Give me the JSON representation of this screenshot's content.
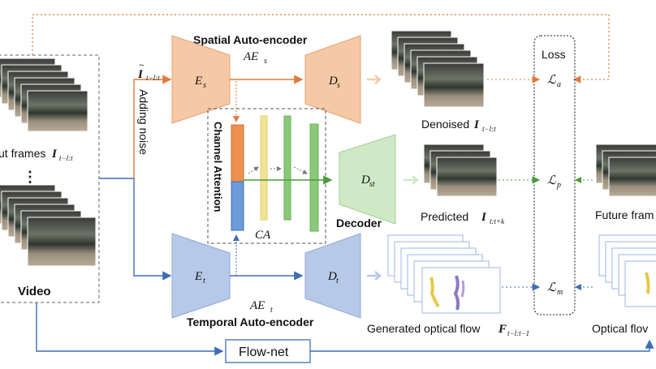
{
  "blocks": {
    "spatial_title": "Spatial Auto-encoder",
    "spatial_var": "AE",
    "spatial_var_sub": "s",
    "es_var": "E",
    "es_sub": "s",
    "ds_var": "D",
    "ds_sub": "s",
    "temporal_title": "Temporal Auto-encoder",
    "temporal_var": "AE",
    "temporal_var_sub": "t",
    "et_var": "E",
    "et_sub": "t",
    "dt_var": "D",
    "dt_sub": "t",
    "decoder_title": "Decoder",
    "dst_var": "D",
    "dst_sub": "st",
    "channel_attention": "Channel Attention",
    "ca_label": "CA",
    "adding_noise": "Adding noise",
    "noisy_input_var": "I",
    "noisy_input_sub": "t−l:t",
    "flownet": "Flow-net",
    "loss_title": "Loss",
    "loss_a_sub": "a",
    "loss_p_sub": "p",
    "loss_m_sub": "m",
    "loss_var": "ℒ"
  },
  "labels": {
    "input_frames_prefix": "ut frames",
    "input_frames_var": "I",
    "input_frames_sub": "t−l:t",
    "video": "Video",
    "denoised_prefix": "Denoised",
    "denoised_var": "I",
    "denoised_sub": "t−l:t",
    "predicted_prefix": "Predicted",
    "predicted_var": "I",
    "predicted_sub": "t:t+k",
    "future_frames": "Future fram",
    "generated_flow_prefix": "Generated optical flow",
    "generated_flow_var": "F",
    "generated_flow_sub": "t−l:t−1",
    "optical_flow": "Optical flov",
    "dots": "⋮"
  },
  "colors": {
    "spatial": "#f6c9a6",
    "spatial_stroke": "#e8a070",
    "temporal": "#b7c9e8",
    "temporal_stroke": "#8fa8d4",
    "decoder": "#cfe9c6",
    "decoder_stroke": "#9fd08f",
    "orange_line": "#e07a3c",
    "blue_line": "#3e6eb5",
    "green_line": "#4a9a3a",
    "ca_yellow": "#f2e394",
    "ca_green": "#8cc879"
  },
  "icons": {
    "frame": "video-frame-thumbnail",
    "flow": "optical-flow-thumbnail"
  }
}
